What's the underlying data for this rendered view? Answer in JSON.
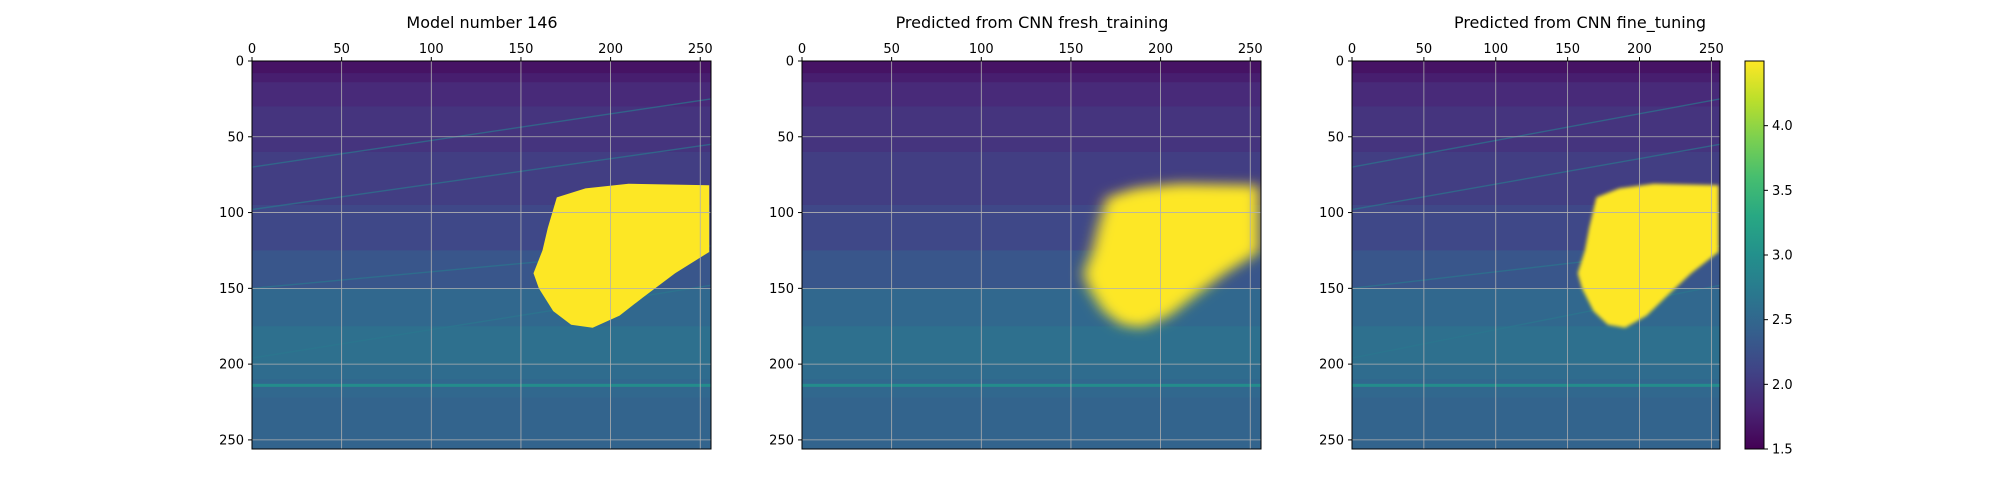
{
  "chart_data": {
    "type": "heatmap",
    "panels": [
      {
        "title": "Model number 146",
        "x_ticks": [
          0,
          50,
          100,
          150,
          200,
          250
        ],
        "y_ticks": [
          0,
          50,
          100,
          150,
          200,
          250
        ],
        "xlim": [
          0,
          255
        ],
        "ylim": [
          255,
          0
        ],
        "grid": true,
        "xaxis_position": "top",
        "features": {
          "background": "layered velocity field increasing with depth (~1.6 at top to ~2.6 at bottom)",
          "anomaly": {
            "value": 4.5,
            "edge": "sharp",
            "x_range": [
              157,
              255
            ],
            "y_range": [
              81,
              176
            ]
          },
          "thin_layer_y": 213
        }
      },
      {
        "title": "Predicted from CNN fresh_training",
        "x_ticks": [
          0,
          50,
          100,
          150,
          200,
          250
        ],
        "y_ticks": [
          0,
          50,
          100,
          150,
          200,
          250
        ],
        "xlim": [
          0,
          255
        ],
        "ylim": [
          255,
          0
        ],
        "grid": true,
        "xaxis_position": "top",
        "features": {
          "background": "smoothed layered velocity field",
          "anomaly": {
            "value": 4.5,
            "edge": "blurred",
            "x_range": [
              158,
              255
            ],
            "y_range": [
              81,
              166
            ]
          },
          "thin_layer_y": 213
        }
      },
      {
        "title": "Predicted from CNN fine_tuning",
        "x_ticks": [
          0,
          50,
          100,
          150,
          200,
          250
        ],
        "y_ticks": [
          0,
          50,
          100,
          150,
          200,
          250
        ],
        "xlim": [
          0,
          255
        ],
        "ylim": [
          255,
          0
        ],
        "grid": true,
        "xaxis_position": "top",
        "features": {
          "background": "layered velocity field increasing with depth",
          "anomaly": {
            "value": 4.5,
            "edge": "slightly smoothed",
            "x_range": [
              157,
              255
            ],
            "y_range": [
              81,
              177
            ]
          },
          "thin_layer_y": 213
        }
      }
    ],
    "colorbar": {
      "min": 1.5,
      "max": 4.5,
      "ticks": [
        "1.5",
        "2.0",
        "2.5",
        "3.0",
        "3.5",
        "4.0"
      ],
      "colormap": "viridis",
      "position": "right"
    }
  }
}
